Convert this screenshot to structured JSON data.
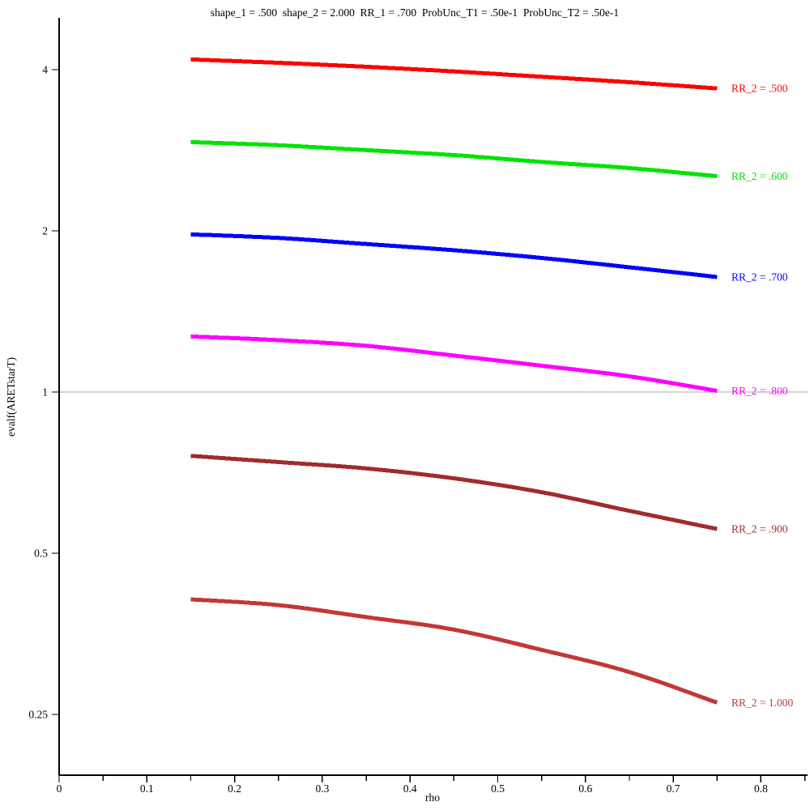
{
  "chart_data": {
    "type": "line",
    "title": "shape_1 = .500  shape_2 = 2.000  RR_1 = .700  ProbUnc_T1 = .50e-1  ProbUnc_T2 = .50e-1",
    "xlabel": "rho",
    "ylabel": "evalf(ARETstarT)",
    "x_axis": {
      "min": 0,
      "max": 0.85,
      "major_ticks": [
        0,
        0.1,
        0.2,
        0.3,
        0.4,
        0.5,
        0.6,
        0.7,
        0.8
      ],
      "major_tick_labels": [
        "0",
        "0.1",
        "0.2",
        "0.3",
        "0.4",
        "0.5",
        "0.6",
        "0.7",
        "0.8"
      ],
      "minor_tick_step": 0.05
    },
    "y_axis": {
      "scale": "log2",
      "ticks": [
        4,
        2,
        1,
        0.5,
        0.25
      ],
      "tick_labels": [
        "4",
        "2",
        "1",
        "0.5",
        "0.25"
      ]
    },
    "reference_line": {
      "y": 1,
      "color": "#a8a8a8"
    },
    "grid": false,
    "legend_position": "labels-right-of-curve-ends",
    "x": [
      0.15,
      0.25,
      0.35,
      0.45,
      0.55,
      0.65,
      0.75
    ],
    "series": [
      {
        "name": "RR_2 = .500",
        "color": "#ff0000",
        "values": [
          4.18,
          4.12,
          4.05,
          3.97,
          3.88,
          3.79,
          3.69
        ]
      },
      {
        "name": "RR_2 = .600",
        "color": "#00e400",
        "values": [
          2.93,
          2.89,
          2.83,
          2.77,
          2.69,
          2.62,
          2.53
        ]
      },
      {
        "name": "RR_2 = .700",
        "color": "#0000ff",
        "values": [
          1.97,
          1.94,
          1.89,
          1.84,
          1.78,
          1.71,
          1.64
        ]
      },
      {
        "name": "RR_2 = .800",
        "color": "#ff00ff",
        "values": [
          1.27,
          1.25,
          1.22,
          1.17,
          1.12,
          1.07,
          1.005
        ]
      },
      {
        "name": "RR_2 = .900",
        "color": "#a02c2c",
        "values": [
          0.76,
          0.74,
          0.72,
          0.69,
          0.65,
          0.6,
          0.555
        ]
      },
      {
        "name": "RR_2 = 1.000",
        "color": "#c43737",
        "values": [
          0.41,
          0.4,
          0.38,
          0.36,
          0.33,
          0.3,
          0.263
        ]
      }
    ]
  }
}
